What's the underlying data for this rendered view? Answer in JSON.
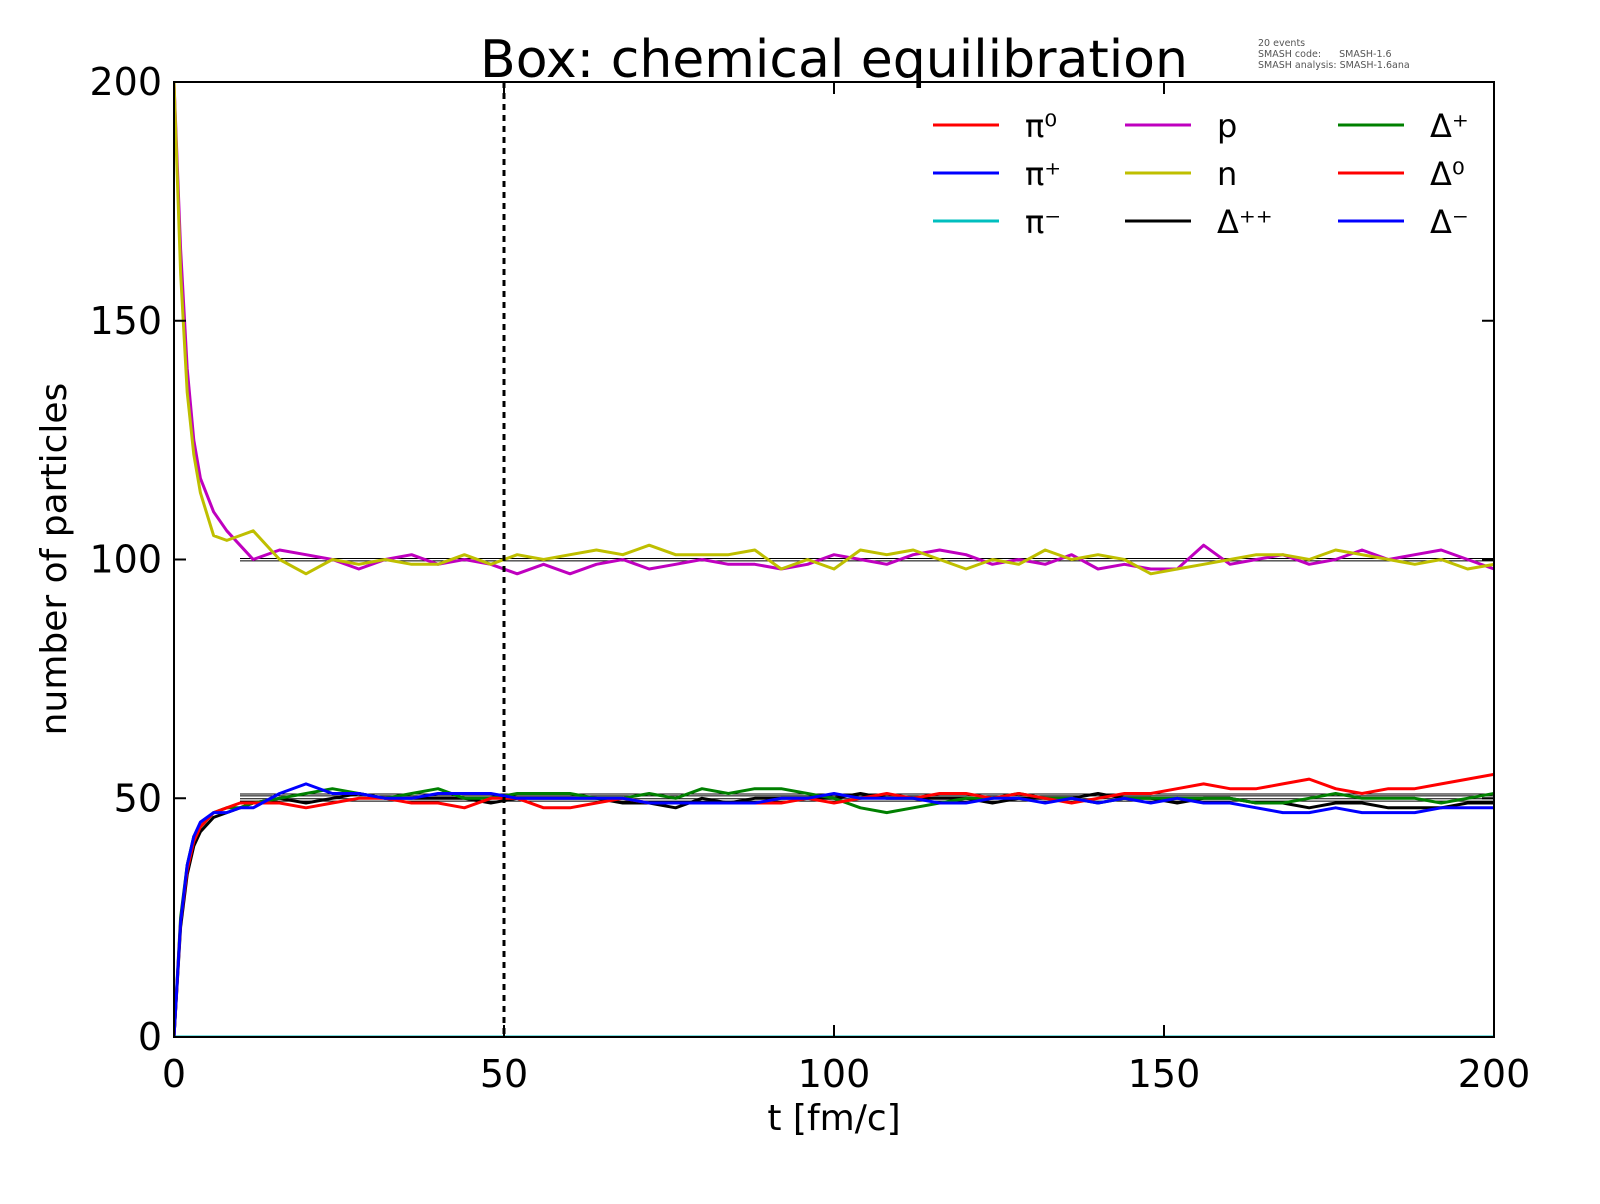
{
  "chart_data": {
    "type": "line",
    "title": "Box: chemical equilibration",
    "xlabel": "t [fm/c]",
    "ylabel": "number of particles",
    "xlim": [
      0,
      200
    ],
    "ylim": [
      0,
      200
    ],
    "xticks": [
      0,
      50,
      100,
      150,
      200
    ],
    "yticks": [
      0,
      50,
      100,
      150,
      200
    ],
    "grid": false,
    "legend_placement": "top-right",
    "legend_columns": 3,
    "annotation": [
      "20 events",
      "SMASH code:      SMASH-1.6",
      "SMASH analysis: SMASH-1.6ana"
    ],
    "vertical_dashed_line_x": 50,
    "equilibrium_lines_y": [
      99.7,
      100.2,
      49.4,
      49.9,
      50.5,
      50.9
    ],
    "x": [
      0,
      1,
      2,
      3,
      4,
      6,
      8,
      10,
      12,
      16,
      20,
      24,
      28,
      32,
      36,
      40,
      44,
      48,
      52,
      56,
      60,
      64,
      68,
      72,
      76,
      80,
      84,
      88,
      92,
      96,
      100,
      104,
      108,
      112,
      116,
      120,
      124,
      128,
      132,
      136,
      140,
      144,
      148,
      152,
      156,
      160,
      164,
      168,
      172,
      176,
      180,
      184,
      188,
      192,
      196,
      200
    ],
    "series": [
      {
        "name": "π⁰",
        "color": "#ff0000",
        "values": [
          0,
          0,
          0,
          0,
          0,
          0,
          0,
          0,
          0,
          0,
          0,
          0,
          0,
          0,
          0,
          0,
          0,
          0,
          0,
          0,
          0,
          0,
          0,
          0,
          0,
          0,
          0,
          0,
          0,
          0,
          0,
          0,
          0,
          0,
          0,
          0,
          0,
          0,
          0,
          0,
          0,
          0,
          0,
          0,
          0,
          0,
          0,
          0,
          0,
          0,
          0,
          0,
          0,
          0,
          0,
          0
        ]
      },
      {
        "name": "π⁺",
        "color": "#0000ff",
        "values": [
          0,
          0,
          0,
          0,
          0,
          0,
          0,
          0,
          0,
          0,
          0,
          0,
          0,
          0,
          0,
          0,
          0,
          0,
          0,
          0,
          0,
          0,
          0,
          0,
          0,
          0,
          0,
          0,
          0,
          0,
          0,
          0,
          0,
          0,
          0,
          0,
          0,
          0,
          0,
          0,
          0,
          0,
          0,
          0,
          0,
          0,
          0,
          0,
          0,
          0,
          0,
          0,
          0,
          0,
          0,
          0
        ]
      },
      {
        "name": "π⁻",
        "color": "#00bfbf",
        "values": [
          0,
          0,
          0,
          0,
          0,
          0,
          0,
          0,
          0,
          0,
          0,
          0,
          0,
          0,
          0,
          0,
          0,
          0,
          0,
          0,
          0,
          0,
          0,
          0,
          0,
          0,
          0,
          0,
          0,
          0,
          0,
          0,
          0,
          0,
          0,
          0,
          0,
          0,
          0,
          0,
          0,
          0,
          0,
          0,
          0,
          0,
          0,
          0,
          0,
          0,
          0,
          0,
          0,
          0,
          0,
          0
        ]
      },
      {
        "name": "p",
        "color": "#bf00bf",
        "values": [
          200,
          165,
          140,
          125,
          117,
          110,
          106,
          103,
          100,
          102,
          101,
          100,
          98,
          100,
          101,
          99,
          100,
          99,
          97,
          99,
          97,
          99,
          100,
          98,
          99,
          100,
          99,
          99,
          98,
          99,
          101,
          100,
          99,
          101,
          102,
          101,
          99,
          100,
          99,
          101,
          98,
          99,
          98,
          98,
          103,
          99,
          100,
          101,
          99,
          100,
          102,
          100,
          101,
          102,
          100,
          98
        ]
      },
      {
        "name": "n",
        "color": "#bfbf00",
        "values": [
          200,
          160,
          135,
          122,
          114,
          105,
          104,
          105,
          106,
          100,
          97,
          100,
          99,
          100,
          99,
          99,
          101,
          99,
          101,
          100,
          101,
          102,
          101,
          103,
          101,
          101,
          101,
          102,
          98,
          100,
          98,
          102,
          101,
          102,
          100,
          98,
          100,
          99,
          102,
          100,
          101,
          100,
          97,
          98,
          99,
          100,
          101,
          101,
          100,
          102,
          101,
          100,
          99,
          100,
          98,
          99
        ]
      },
      {
        "name": "Δ⁺⁺",
        "color": "#000000",
        "values": [
          0,
          23,
          34,
          40,
          43,
          46,
          47,
          48,
          49,
          50,
          49,
          50,
          51,
          50,
          50,
          50,
          50,
          49,
          50,
          50,
          50,
          50,
          49,
          49,
          48,
          50,
          49,
          50,
          50,
          50,
          50,
          51,
          50,
          50,
          50,
          50,
          49,
          50,
          50,
          50,
          51,
          50,
          50,
          49,
          50,
          50,
          49,
          49,
          48,
          49,
          49,
          48,
          48,
          48,
          49,
          49
        ]
      },
      {
        "name": "Δ⁺",
        "color": "#008000",
        "values": [
          0,
          25,
          36,
          42,
          44,
          47,
          48,
          48,
          49,
          50,
          51,
          52,
          51,
          50,
          51,
          52,
          50,
          50,
          51,
          51,
          51,
          50,
          50,
          51,
          50,
          52,
          51,
          52,
          52,
          51,
          50,
          48,
          47,
          48,
          49,
          50,
          50,
          51,
          50,
          50,
          49,
          50,
          50,
          50,
          50,
          50,
          49,
          49,
          50,
          51,
          50,
          50,
          50,
          49,
          50,
          51
        ]
      },
      {
        "name": "Δ⁰",
        "color": "#ff0000",
        "values": [
          0,
          24,
          35,
          41,
          44,
          47,
          48,
          49,
          49,
          49,
          48,
          49,
          50,
          50,
          49,
          49,
          48,
          50,
          50,
          48,
          48,
          49,
          50,
          49,
          49,
          49,
          49,
          49,
          49,
          50,
          49,
          50,
          51,
          50,
          51,
          51,
          50,
          51,
          50,
          49,
          50,
          51,
          51,
          52,
          53,
          52,
          52,
          53,
          54,
          52,
          51,
          52,
          52,
          53,
          54,
          55
        ]
      },
      {
        "name": "Δ⁻",
        "color": "#0000ff",
        "values": [
          0,
          24,
          36,
          42,
          45,
          47,
          47,
          48,
          48,
          51,
          53,
          51,
          51,
          50,
          50,
          51,
          51,
          51,
          50,
          50,
          50,
          50,
          50,
          49,
          49,
          49,
          49,
          49,
          50,
          50,
          51,
          50,
          50,
          50,
          49,
          49,
          50,
          50,
          49,
          50,
          49,
          50,
          49,
          50,
          49,
          49,
          48,
          47,
          47,
          48,
          47,
          47,
          47,
          48,
          48,
          48
        ]
      }
    ]
  }
}
